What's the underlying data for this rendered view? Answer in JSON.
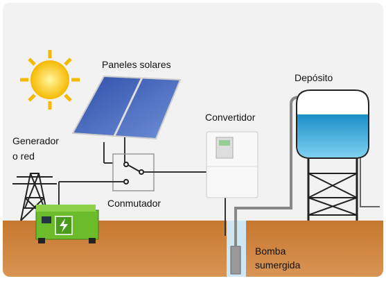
{
  "labels": {
    "solar_panels": "Paneles solares",
    "tank": "Depósito",
    "converter": "Convertidor",
    "generator": [
      "Generador",
      "o red"
    ],
    "switch": "Conmutador",
    "pump": [
      "Bomba",
      "sumergida"
    ]
  }
}
